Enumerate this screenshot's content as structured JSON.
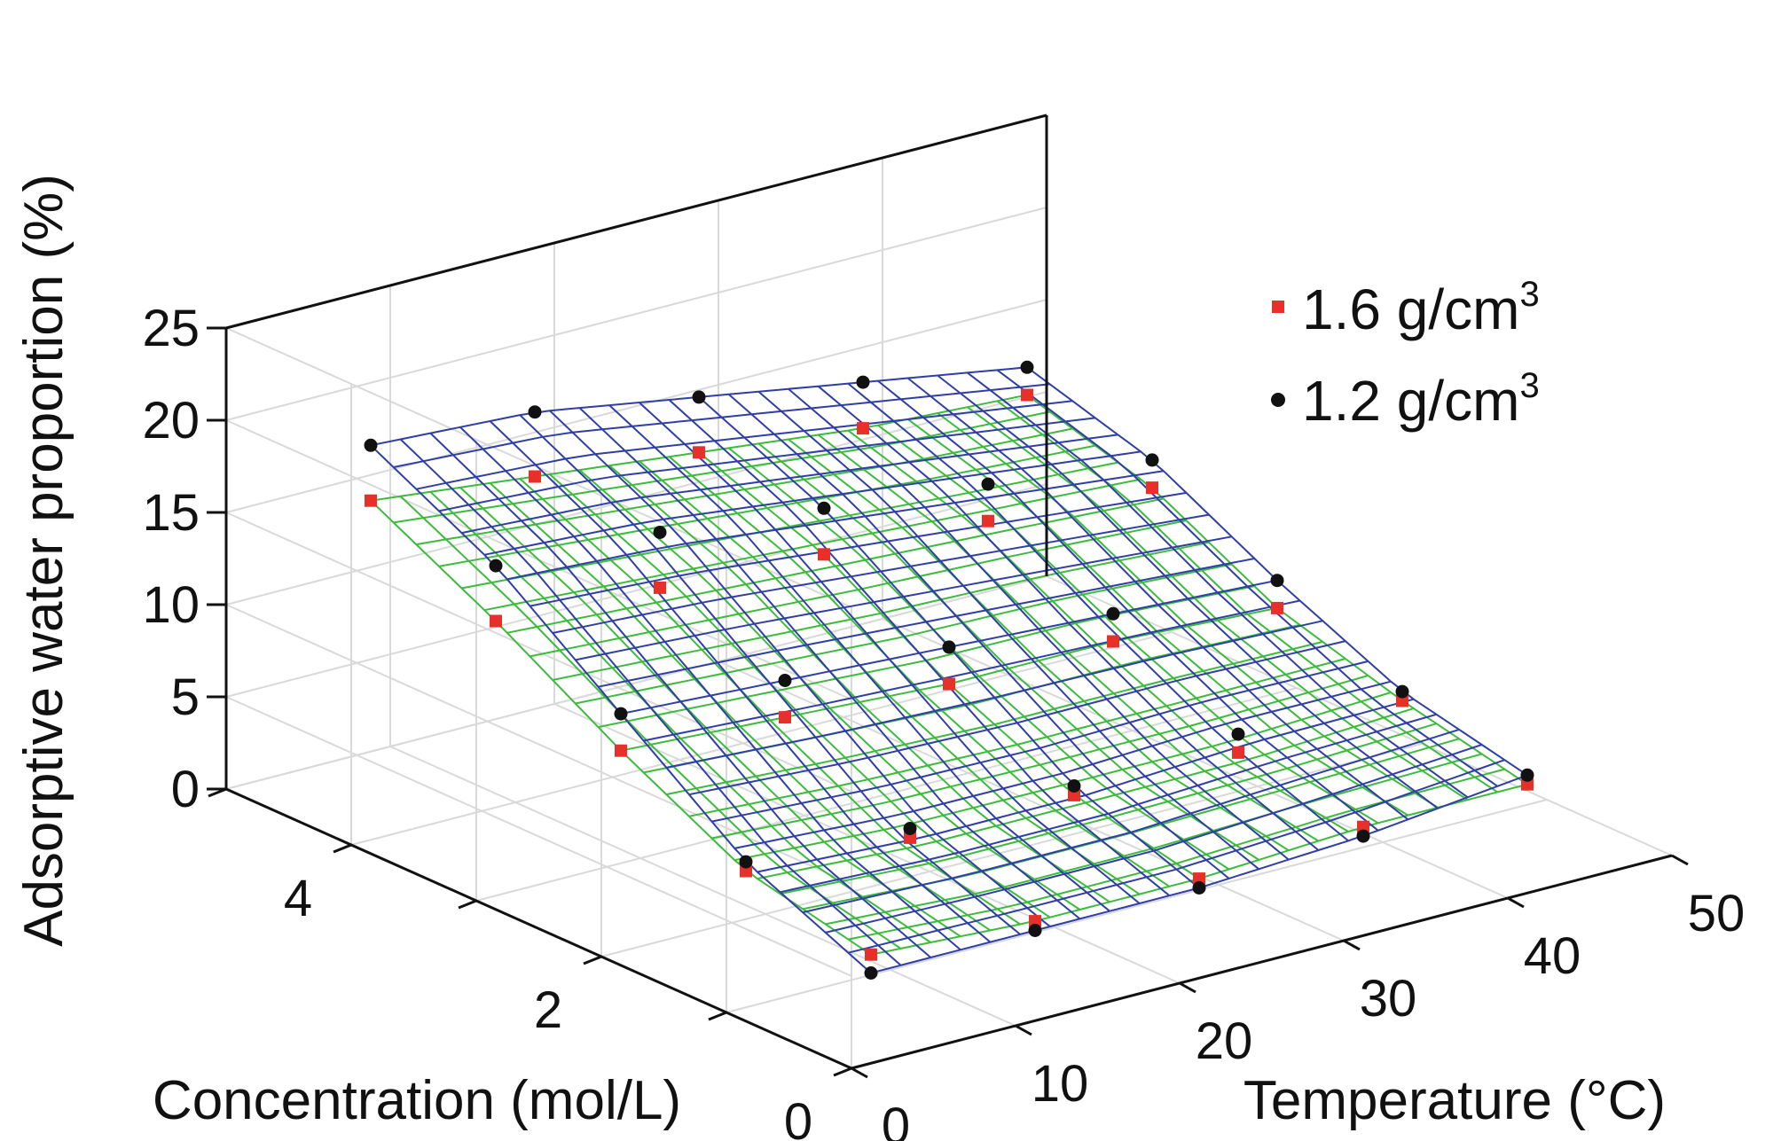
{
  "chart_data": {
    "type": "surface3d",
    "title": "",
    "xlabel": "Temperature (°C)",
    "ylabel": "Concentration (mol/L)",
    "zlabel": "Adsorptive water proportion (%)",
    "xlim": [
      0,
      50
    ],
    "ylim": [
      0,
      5
    ],
    "zlim": [
      0,
      25
    ],
    "xticks": [
      "0",
      "10",
      "20",
      "30",
      "40",
      "50"
    ],
    "yticks": [
      "0",
      "2",
      "4"
    ],
    "zticks": [
      "0",
      "5",
      "10",
      "15",
      "20",
      "25"
    ],
    "grid": true,
    "legend_position": "top-right",
    "series": [
      {
        "name": "1.6 g/cm",
        "sup": "3",
        "marker": "square",
        "marker_color": "#e8302a",
        "surface_color": "#3dbb3d",
        "temperatures": [
          5,
          15,
          25,
          35,
          45
        ],
        "concentrations": [
          0.5,
          1.5,
          2.5,
          3.5,
          4.5
        ],
        "values": [
          [
            3.5,
            3.0,
            3.0,
            3.5,
            3.5
          ],
          [
            5.0,
            4.5,
            4.5,
            4.5,
            5.0
          ],
          [
            8.5,
            8.0,
            7.5,
            7.5,
            7.0
          ],
          [
            12.5,
            12.0,
            11.5,
            11.0,
            10.5
          ],
          [
            16.0,
            15.0,
            14.0,
            13.0,
            12.5
          ]
        ]
      },
      {
        "name": "1.2 g/cm",
        "sup": "3",
        "marker": "circle",
        "marker_color": "#111111",
        "surface_color": "#2f3fa6",
        "temperatures": [
          5,
          15,
          25,
          35,
          45
        ],
        "concentrations": [
          0.5,
          1.5,
          2.5,
          3.5,
          4.5
        ],
        "values": [
          [
            2.5,
            2.5,
            2.5,
            3.0,
            4.0
          ],
          [
            5.5,
            5.0,
            5.0,
            5.5,
            5.5
          ],
          [
            10.5,
            10.0,
            9.5,
            9.0,
            8.5
          ],
          [
            15.5,
            15.0,
            14.0,
            13.0,
            12.0
          ],
          [
            19.0,
            18.5,
            17.0,
            15.5,
            14.0
          ]
        ]
      }
    ]
  }
}
